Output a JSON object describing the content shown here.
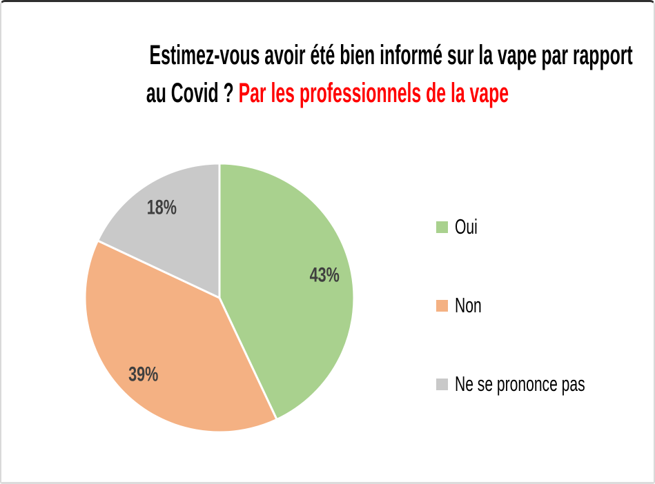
{
  "page": {
    "background": "#ffffff",
    "frame_top_border": "#2f2f2f",
    "frame_side_border": "#d9d9d9"
  },
  "title": {
    "line1": "Estimez-vous avoir été bien informé sur la vape par rapport",
    "line2_black": "au Covid ? ",
    "line2_red": "Par les professionnels de la vape",
    "text_color": "#000000",
    "red_color": "#ff0000"
  },
  "chart_data": {
    "type": "pie",
    "title": "Estimez-vous avoir été bien informé sur la vape par rapport au Covid ? Par les professionnels de la vape",
    "categories": [
      "Oui",
      "Non",
      "Ne se prononce pas"
    ],
    "values": [
      43,
      39,
      18
    ],
    "unit": "%",
    "labels": [
      "43%",
      "39%",
      "18%"
    ],
    "colors": [
      "#a9d18e",
      "#f4b183",
      "#c9c9c9"
    ],
    "label_color": "#3f3f3f",
    "start_angle_deg": 0,
    "direction": "clockwise",
    "slice_separator_color": "#ffffff",
    "legend_position": "right",
    "legend": [
      {
        "label": "Oui",
        "color": "#a9d18e"
      },
      {
        "label": "Non",
        "color": "#f4b183"
      },
      {
        "label": "Ne se prononce pas",
        "color": "#c9c9c9"
      }
    ]
  }
}
